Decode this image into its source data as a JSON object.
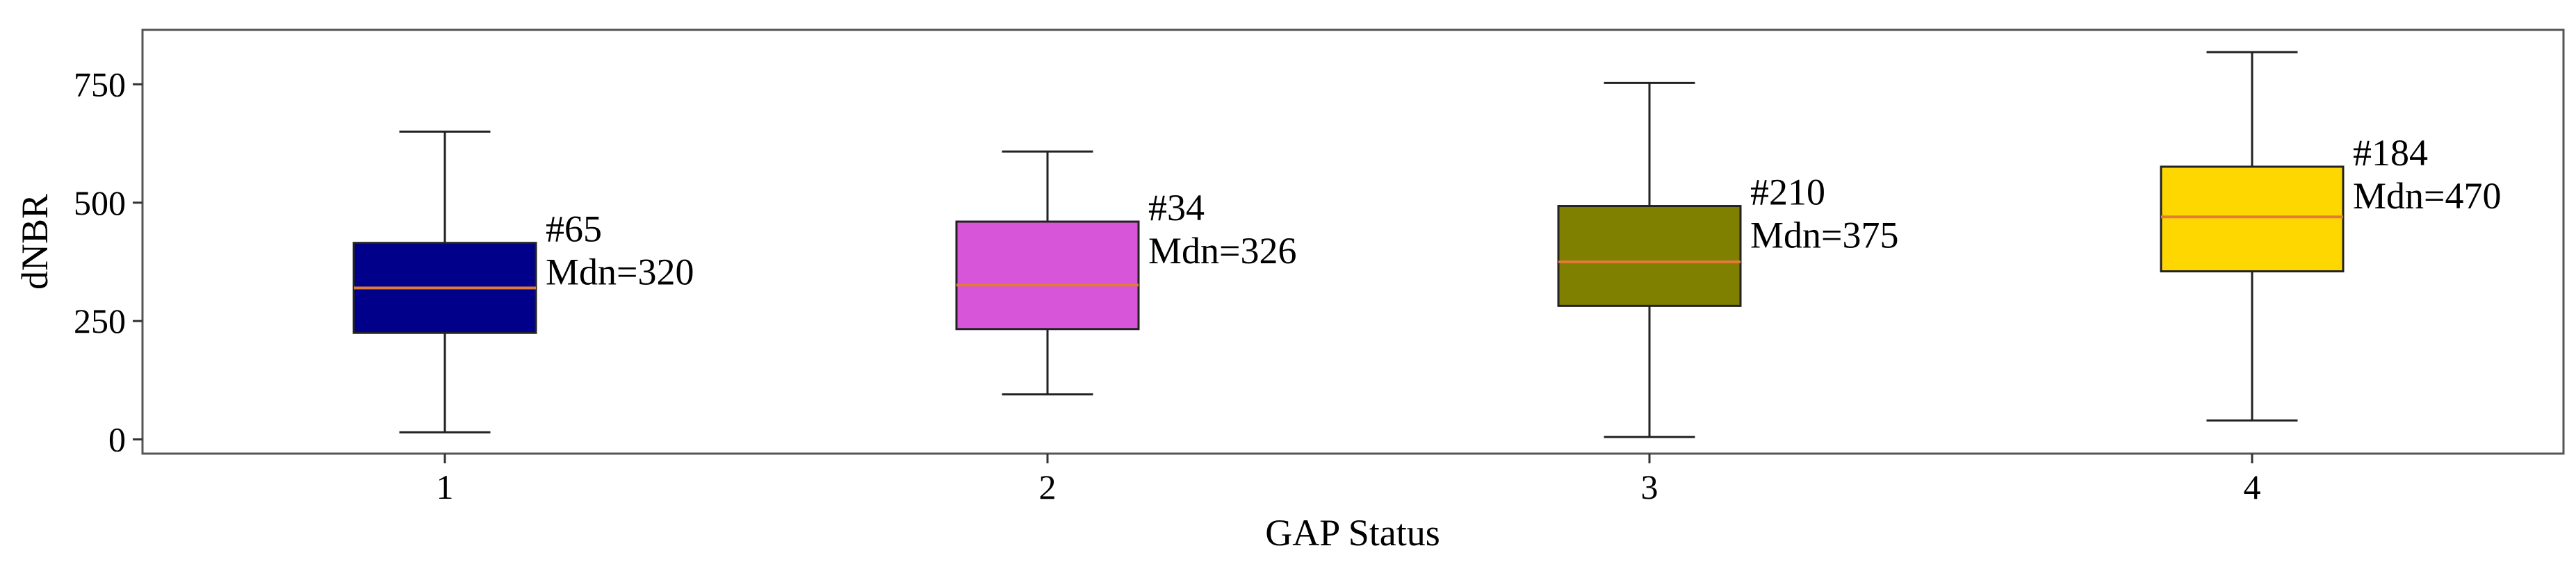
{
  "chart_data": {
    "type": "box",
    "xlabel": "GAP Status",
    "ylabel": "dNBR",
    "categories": [
      "1",
      "2",
      "3",
      "4"
    ],
    "yticks": [
      0,
      250,
      500,
      750
    ],
    "ylim": [
      -30,
      865
    ],
    "grid": false,
    "boxes": [
      {
        "category": "1",
        "whisker_low": 15,
        "q1": 225,
        "median": 320,
        "q3": 415,
        "whisker_high": 650,
        "color": "#00008B",
        "count_label": "#65",
        "median_label": "Mdn=320"
      },
      {
        "category": "2",
        "whisker_low": 95,
        "q1": 233,
        "median": 326,
        "q3": 460,
        "whisker_high": 608,
        "color": "#D655D9",
        "count_label": "#34",
        "median_label": "Mdn=326"
      },
      {
        "category": "3",
        "whisker_low": 5,
        "q1": 282,
        "median": 375,
        "q3": 493,
        "whisker_high": 753,
        "color": "#808000",
        "count_label": "#210",
        "median_label": "Mdn=375"
      },
      {
        "category": "4",
        "whisker_low": 40,
        "q1": 355,
        "median": 470,
        "q3": 576,
        "whisker_high": 818,
        "color": "#FFD700",
        "count_label": "#184",
        "median_label": "Mdn=470"
      }
    ],
    "median_line_color": "#E07B39"
  }
}
